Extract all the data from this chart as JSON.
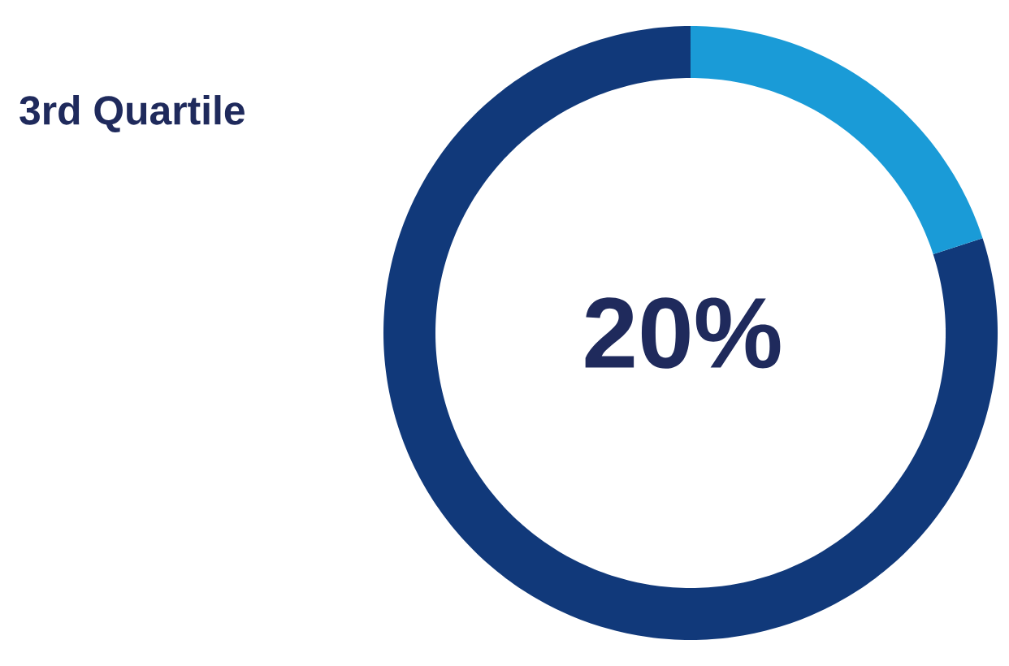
{
  "chart_data": {
    "type": "donut",
    "title": "3rd Quartile",
    "categories": [
      null,
      null
    ],
    "values": [
      20,
      80
    ],
    "colors": [
      "#1a9bd7",
      "#11397a"
    ],
    "annotations": [
      "20%"
    ]
  }
}
